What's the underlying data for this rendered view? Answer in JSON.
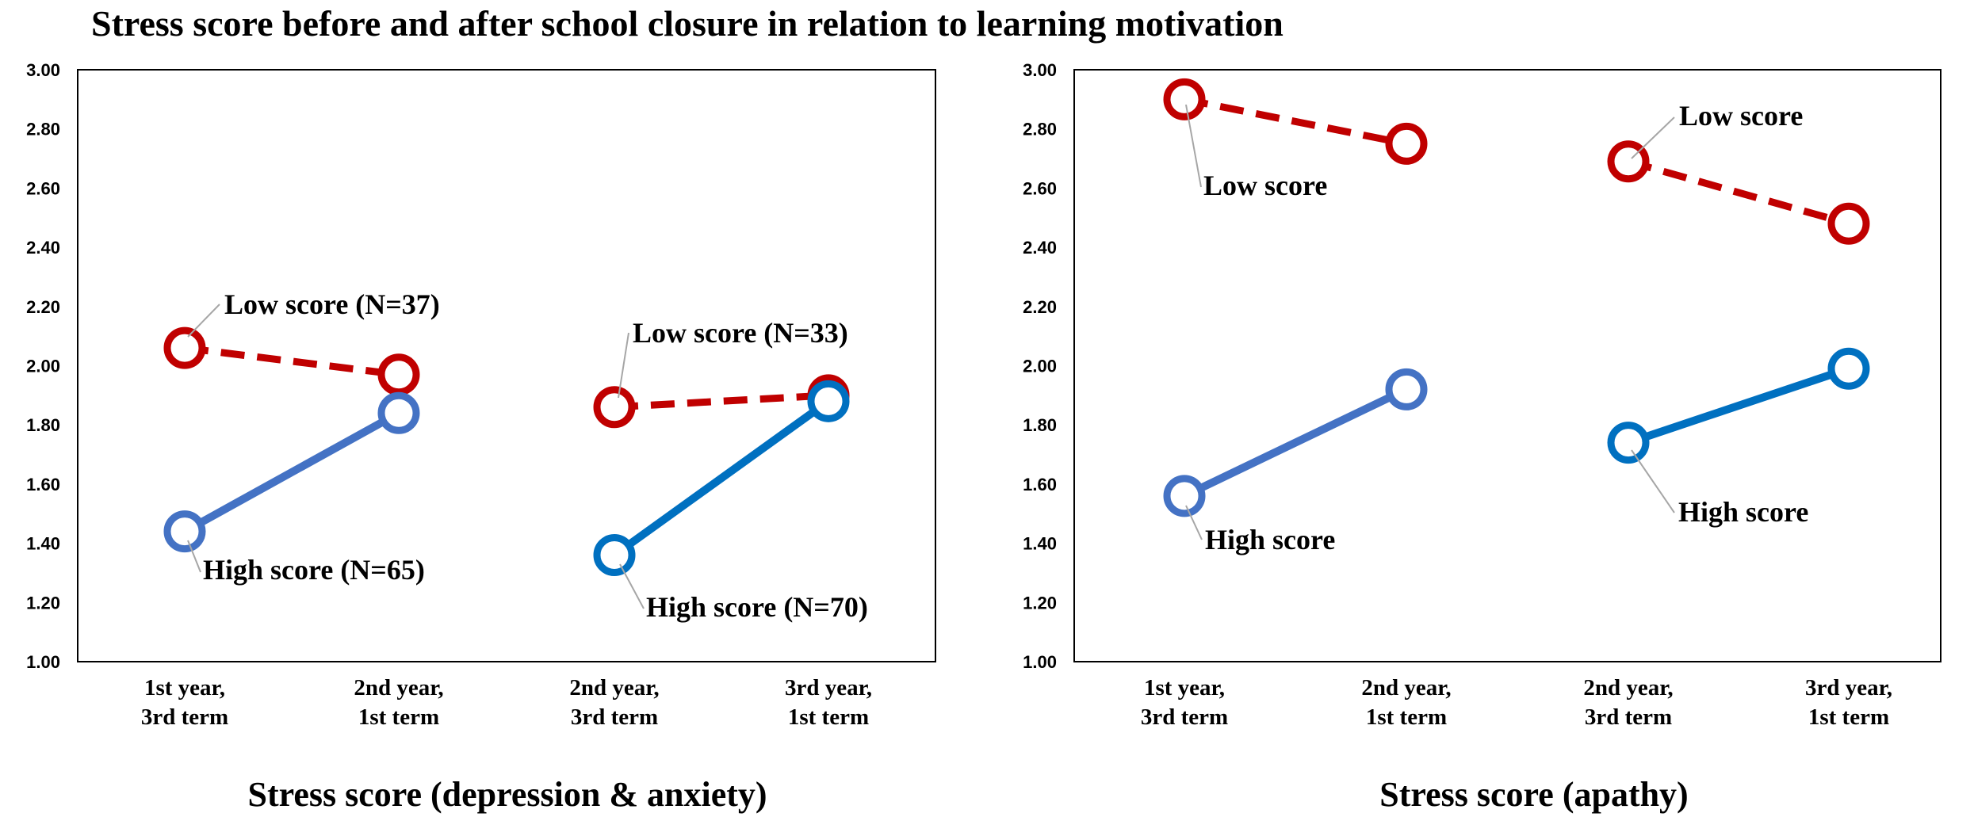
{
  "title": "Stress score before and after school closure in relation to learning motivation",
  "colors": {
    "low": "#C00000",
    "high_left": "#4472C4",
    "high_right": "#0070C0",
    "leader": "#A6A6A6"
  },
  "chart_data": [
    {
      "type": "line",
      "xlabel": "Stress score (depression & anxiety)",
      "ylabel": "",
      "ylim": [
        1.0,
        3.0
      ],
      "yticks": [
        "1.00",
        "1.20",
        "1.40",
        "1.60",
        "1.80",
        "2.00",
        "2.20",
        "2.40",
        "2.60",
        "2.80",
        "3.00"
      ],
      "categories": [
        [
          "1st year,",
          "3rd term"
        ],
        [
          "2nd year,",
          "1st term"
        ],
        [
          "2nd year,",
          "3rd term"
        ],
        [
          "3rd year,",
          "1st term"
        ]
      ],
      "segments": [
        {
          "group": "low",
          "label": "Low score (N=37)",
          "style": "dashed",
          "color": "#C00000",
          "x": [
            0,
            1
          ],
          "y": [
            2.06,
            1.97
          ]
        },
        {
          "group": "high",
          "label": "High score (N=65)",
          "style": "solid",
          "color": "#4472C4",
          "x": [
            0,
            1
          ],
          "y": [
            1.44,
            1.84
          ]
        },
        {
          "group": "low",
          "label": "Low score (N=33)",
          "style": "dashed",
          "color": "#C00000",
          "x": [
            2,
            3
          ],
          "y": [
            1.86,
            1.9
          ]
        },
        {
          "group": "high",
          "label": "High score (N=70)",
          "style": "solid",
          "color": "#0070C0",
          "x": [
            2,
            3
          ],
          "y": [
            1.36,
            1.88
          ]
        }
      ]
    },
    {
      "type": "line",
      "xlabel": "Stress score (apathy)",
      "ylabel": "",
      "ylim": [
        1.0,
        3.0
      ],
      "yticks": [
        "1.00",
        "1.20",
        "1.40",
        "1.60",
        "1.80",
        "2.00",
        "2.20",
        "2.40",
        "2.60",
        "2.80",
        "3.00"
      ],
      "categories": [
        [
          "1st year,",
          "3rd term"
        ],
        [
          "2nd year,",
          "1st term"
        ],
        [
          "2nd year,",
          "3rd term"
        ],
        [
          "3rd year,",
          "1st term"
        ]
      ],
      "segments": [
        {
          "group": "low",
          "label": "Low score",
          "style": "dashed",
          "color": "#C00000",
          "x": [
            0,
            1
          ],
          "y": [
            2.9,
            2.75
          ]
        },
        {
          "group": "high",
          "label": "High score",
          "style": "solid",
          "color": "#4472C4",
          "x": [
            0,
            1
          ],
          "y": [
            1.56,
            1.92
          ]
        },
        {
          "group": "low",
          "label": "Low score",
          "style": "dashed",
          "color": "#C00000",
          "x": [
            2,
            3
          ],
          "y": [
            2.69,
            2.48
          ]
        },
        {
          "group": "high",
          "label": "High score",
          "style": "solid",
          "color": "#0070C0",
          "x": [
            2,
            3
          ],
          "y": [
            1.74,
            1.99
          ]
        }
      ]
    }
  ]
}
